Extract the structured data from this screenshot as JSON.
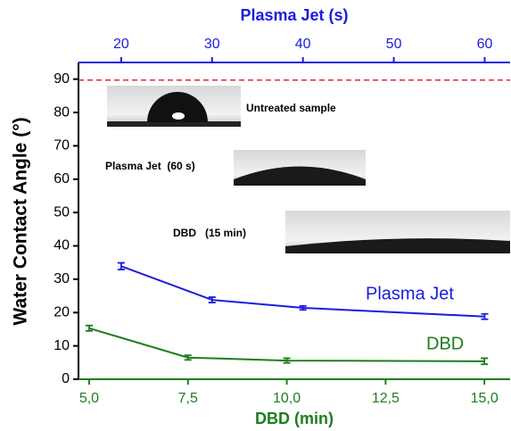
{
  "chart_data": {
    "type": "line",
    "ylabel": "Water Contact Angle (°)",
    "xlabel": "DBD (min)",
    "x2label": "Plasma Jet (s)",
    "ylim": [
      0,
      95
    ],
    "yticks": [
      0,
      10,
      20,
      30,
      40,
      50,
      60,
      70,
      80,
      90
    ],
    "xlim": [
      4.73,
      15.65
    ],
    "xticks": [
      {
        "value": 5,
        "label": "5,0"
      },
      {
        "value": 7.5,
        "label": "7,5"
      },
      {
        "value": 10,
        "label": "10,0"
      },
      {
        "value": 12.5,
        "label": "12,5"
      },
      {
        "value": 15,
        "label": "15,0"
      }
    ],
    "x2lim": [
      15.3,
      62.8
    ],
    "x2ticks": [
      20,
      30,
      40,
      50,
      60
    ],
    "reference_line": {
      "value": 89.7,
      "color": "#e8262b"
    },
    "series": [
      {
        "name": "Plasma Jet",
        "color": "#1c1ce0",
        "axis": "x2",
        "x": [
          20,
          30,
          40,
          60
        ],
        "values": [
          33.9,
          23.8,
          21.4,
          18.8
        ],
        "errors": [
          1.0,
          0.8,
          0.6,
          0.8
        ]
      },
      {
        "name": "DBD",
        "color": "#1d7d1d",
        "axis": "x",
        "x": [
          5,
          7.5,
          10,
          15
        ],
        "values": [
          15.3,
          6.5,
          5.6,
          5.4
        ],
        "errors": [
          0.8,
          0.7,
          0.7,
          0.9
        ]
      }
    ],
    "annotations": [
      "Untreated sample",
      "Plasma Jet  (60 s)",
      "DBD   (15 min)"
    ]
  }
}
